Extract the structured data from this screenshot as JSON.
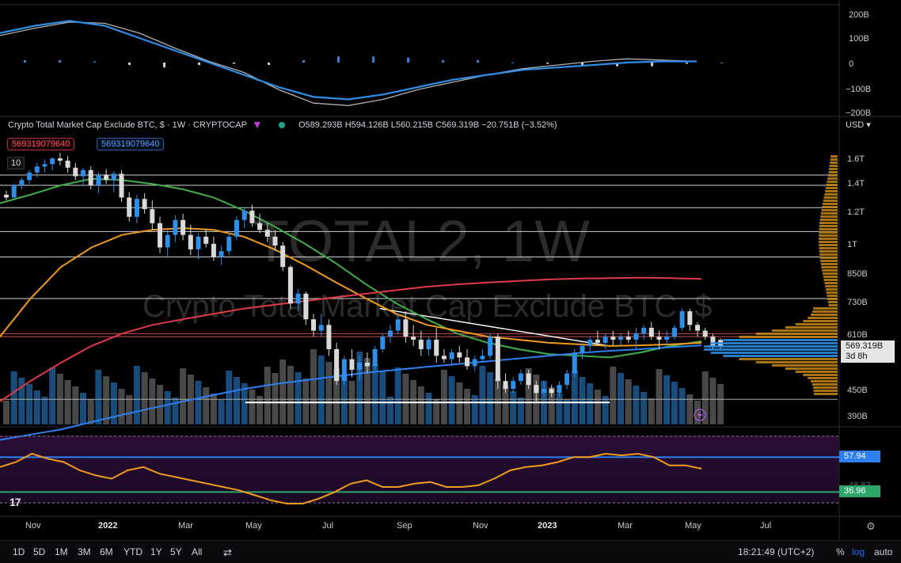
{
  "header": {
    "title": "Crypto Total Market Cap Exclude BTC, $ · 1W · CRYPTOCAP",
    "ohlc": "O589.293B H594.126B L560.215B C569.319B −20.751B (−3.52%)",
    "pill_red": "569319079640",
    "pill_blue": "569319079640",
    "ma_input": "10",
    "currency": "USD"
  },
  "watermark": {
    "line1": "TOTAL2, 1W",
    "line2": "Crypto Total Market Cap Exclude BTC, $"
  },
  "price_axis": {
    "labels": [
      "1.6T",
      "1.4T",
      "1.2T",
      "1T",
      "850B",
      "730B",
      "610B",
      "450B",
      "390B"
    ],
    "price_tag": "569.319B",
    "countdown": "3d 8h"
  },
  "macd_axis": {
    "labels": [
      "200B",
      "100B",
      "0",
      "−100B",
      "−200B"
    ]
  },
  "rsi_axis": {
    "tag1": "57.94",
    "tag2": "36.96",
    "partial": "48.83"
  },
  "time_axis": {
    "labels": [
      "Nov",
      "2022",
      "Mar",
      "May",
      "Jul",
      "Sep",
      "Nov",
      "2023",
      "Mar",
      "May",
      "Jul"
    ],
    "bold": [
      false,
      true,
      false,
      false,
      false,
      false,
      false,
      true,
      false,
      false,
      false
    ]
  },
  "toolbar": {
    "timeframes": [
      "1D",
      "5D",
      "1M",
      "3M",
      "6M",
      "YTD",
      "1Y",
      "5Y",
      "All"
    ],
    "clock": "18:21:49 (UTC+2)",
    "pct": "%",
    "log": "log",
    "auto": "auto"
  },
  "icons": [
    "compare-icon",
    "gear-icon",
    "lightning-icon",
    "tradingview-logo-icon"
  ],
  "colors": {
    "up": "#2e8fe8",
    "down": "#d9d9d9",
    "ma_green": "#3fae4a",
    "ma_orange": "#f09a1e",
    "ma_red": "#e03a48",
    "ma_blue": "#2e7ff0",
    "rsi": "#f09a1e",
    "macd_fast": "#2e8fe8",
    "macd_slow": "#b0b0b0"
  },
  "chart_data": {
    "type": "candlestick",
    "symbol": "TOTAL2",
    "interval": "1W",
    "x_range": [
      "Oct 2021",
      "Jul 2023"
    ],
    "y_scale": "log",
    "candles": [
      [
        1310,
        1340,
        1270,
        1290
      ],
      [
        1290,
        1390,
        1280,
        1380
      ],
      [
        1380,
        1440,
        1350,
        1420
      ],
      [
        1420,
        1500,
        1390,
        1480
      ],
      [
        1480,
        1560,
        1440,
        1530
      ],
      [
        1530,
        1590,
        1480,
        1550
      ],
      [
        1550,
        1610,
        1500,
        1600
      ],
      [
        1600,
        1650,
        1540,
        1580
      ],
      [
        1580,
        1620,
        1480,
        1520
      ],
      [
        1520,
        1560,
        1420,
        1450
      ],
      [
        1450,
        1520,
        1380,
        1500
      ],
      [
        1500,
        1530,
        1350,
        1380
      ],
      [
        1380,
        1480,
        1320,
        1460
      ],
      [
        1460,
        1510,
        1390,
        1420
      ],
      [
        1420,
        1490,
        1330,
        1470
      ],
      [
        1470,
        1500,
        1260,
        1290
      ],
      [
        1290,
        1330,
        1130,
        1160
      ],
      [
        1160,
        1310,
        1120,
        1280
      ],
      [
        1280,
        1320,
        1180,
        1210
      ],
      [
        1210,
        1270,
        1080,
        1120
      ],
      [
        1120,
        1160,
        950,
        980
      ],
      [
        980,
        1080,
        930,
        1050
      ],
      [
        1050,
        1170,
        1010,
        1140
      ],
      [
        1140,
        1180,
        1020,
        1050
      ],
      [
        1050,
        1110,
        940,
        970
      ],
      [
        970,
        1060,
        920,
        1040
      ],
      [
        1040,
        1080,
        980,
        1000
      ],
      [
        1000,
        1040,
        910,
        930
      ],
      [
        930,
        990,
        890,
        960
      ],
      [
        960,
        1060,
        940,
        1040
      ],
      [
        1040,
        1160,
        1020,
        1140
      ],
      [
        1140,
        1220,
        1090,
        1200
      ],
      [
        1200,
        1240,
        1100,
        1120
      ],
      [
        1120,
        1180,
        1060,
        1080
      ],
      [
        1080,
        1120,
        1010,
        1040
      ],
      [
        1040,
        1080,
        960,
        990
      ],
      [
        990,
        1010,
        860,
        880
      ],
      [
        880,
        890,
        700,
        720
      ],
      [
        720,
        780,
        690,
        760
      ],
      [
        760,
        770,
        640,
        660
      ],
      [
        660,
        680,
        600,
        620
      ],
      [
        620,
        680,
        600,
        640
      ],
      [
        640,
        660,
        540,
        560
      ],
      [
        560,
        580,
        460,
        470
      ],
      [
        470,
        540,
        460,
        530
      ],
      [
        530,
        560,
        480,
        500
      ],
      [
        500,
        540,
        470,
        520
      ],
      [
        520,
        550,
        490,
        510
      ],
      [
        510,
        570,
        500,
        560
      ],
      [
        560,
        610,
        550,
        600
      ],
      [
        600,
        640,
        580,
        620
      ],
      [
        620,
        680,
        610,
        660
      ],
      [
        660,
        690,
        580,
        600
      ],
      [
        600,
        640,
        570,
        590
      ],
      [
        590,
        620,
        540,
        560
      ],
      [
        560,
        600,
        540,
        590
      ],
      [
        590,
        630,
        520,
        540
      ],
      [
        540,
        560,
        520,
        530
      ],
      [
        530,
        560,
        510,
        550
      ],
      [
        550,
        570,
        520,
        535
      ],
      [
        535,
        560,
        500,
        510
      ],
      [
        510,
        540,
        495,
        530
      ],
      [
        530,
        560,
        520,
        540
      ],
      [
        540,
        610,
        530,
        600
      ],
      [
        600,
        610,
        450,
        470
      ],
      [
        470,
        490,
        440,
        450
      ],
      [
        450,
        480,
        440,
        470
      ],
      [
        470,
        500,
        460,
        490
      ],
      [
        490,
        500,
        450,
        460
      ],
      [
        460,
        470,
        420,
        440
      ],
      [
        440,
        470,
        430,
        450
      ],
      [
        450,
        460,
        430,
        440
      ],
      [
        440,
        470,
        430,
        460
      ],
      [
        460,
        500,
        450,
        490
      ],
      [
        490,
        560,
        480,
        550
      ],
      [
        550,
        580,
        530,
        570
      ],
      [
        570,
        600,
        550,
        590
      ],
      [
        590,
        620,
        570,
        580
      ],
      [
        580,
        610,
        560,
        600
      ],
      [
        600,
        620,
        570,
        590
      ],
      [
        590,
        610,
        570,
        600
      ],
      [
        600,
        620,
        580,
        590
      ],
      [
        590,
        630,
        560,
        610
      ],
      [
        610,
        640,
        590,
        630
      ],
      [
        630,
        650,
        590,
        600
      ],
      [
        600,
        620,
        560,
        590
      ],
      [
        590,
        620,
        570,
        600
      ],
      [
        600,
        640,
        590,
        630
      ],
      [
        630,
        700,
        620,
        690
      ],
      [
        690,
        700,
        620,
        640
      ],
      [
        640,
        650,
        600,
        620
      ],
      [
        620,
        630,
        590,
        600
      ],
      [
        600,
        610,
        560,
        570
      ],
      [
        589.293,
        594.126,
        560.215,
        569.319
      ]
    ],
    "moving_averages": [
      {
        "period": 20,
        "color": "green",
        "values": [
          1250,
          1310,
          1380,
          1430,
          1420,
          1390,
          1350,
          1290,
          1200,
          1100,
          1000,
          900,
          800,
          720,
          660,
          610,
          580,
          560,
          545,
          540,
          535,
          550,
          570,
          585
        ]
      },
      {
        "period": 50,
        "color": "orange",
        "values": [
          600,
          740,
          880,
          980,
          1050,
          1080,
          1090,
          1080,
          1040,
          970,
          890,
          810,
          740,
          680,
          640,
          620,
          600,
          590,
          580,
          575,
          570,
          572,
          575,
          580
        ]
      },
      {
        "period": 100,
        "color": "red",
        "values": [
          420,
          470,
          520,
          570,
          610,
          640,
          660,
          680,
          700,
          715,
          730,
          745,
          760,
          775,
          790,
          800,
          808,
          815,
          822,
          826,
          828,
          830,
          828,
          824
        ]
      },
      {
        "period": 200,
        "color": "blue",
        "values": [
          340,
          350,
          360,
          375,
          390,
          405,
          420,
          435,
          450,
          462,
          472,
          482,
          492,
          500,
          508,
          516,
          524,
          532,
          540,
          548,
          555,
          560,
          566,
          572
        ]
      }
    ],
    "support_resistance_lines": [
      1460,
      1380,
      1220,
      1070,
      930,
      740,
      610,
      600
    ],
    "trendline": {
      "from": [
        "Aug 2022",
        700
      ],
      "to": [
        "Feb 2023",
        570
      ]
    },
    "support_line": 425,
    "macd": {
      "y_range": [
        -200,
        200
      ],
      "fast": [
        120,
        150,
        170,
        150,
        100,
        50,
        0,
        -50,
        -100,
        -140,
        -150,
        -130,
        -100,
        -70,
        -50,
        -30,
        -20,
        -10,
        0,
        5,
        5
      ],
      "slow": [
        110,
        140,
        165,
        160,
        120,
        60,
        5,
        -40,
        -110,
        -165,
        -175,
        -150,
        -110,
        -80,
        -50,
        -25,
        -10,
        5,
        15,
        10,
        5
      ],
      "histogram": [
        10,
        10,
        5,
        -10,
        -20,
        -10,
        -5,
        -10,
        10,
        25,
        25,
        20,
        10,
        10,
        0,
        -5,
        -10,
        -15,
        -15,
        -5,
        0
      ]
    },
    "rsi": {
      "levels": {
        "upper": 57.94,
        "lower": 36.96
      },
      "values": [
        52,
        55,
        60,
        57,
        55,
        50,
        47,
        45,
        50,
        52,
        48,
        46,
        44,
        42,
        40,
        38,
        35,
        32,
        30,
        30,
        33,
        37,
        42,
        44,
        40,
        40,
        42,
        43,
        40,
        40,
        41,
        45,
        50,
        52,
        53,
        55,
        58,
        58,
        60,
        59,
        60,
        58,
        53,
        53,
        51
      ]
    }
  }
}
